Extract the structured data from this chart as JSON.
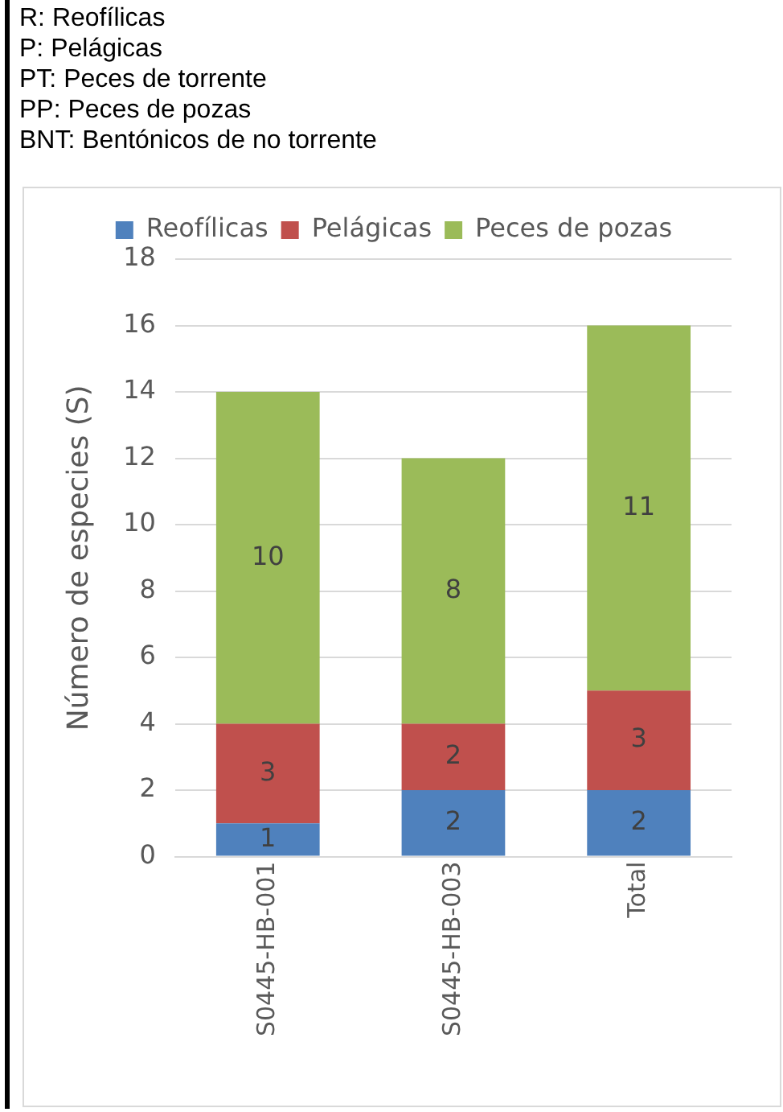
{
  "chart_data": {
    "type": "bar",
    "stacked": true,
    "ylabel": "Número de especies (S)",
    "annotations": [
      "R: Reofílicas",
      "P: Pelágicas",
      "PT: Peces de torrente",
      "PP: Peces de pozas",
      "BNT: Bentónicos de no torrente"
    ],
    "categories": [
      "S0445-HB-001",
      "S0445-HB-003",
      "Total"
    ],
    "series": [
      {
        "name": "Reofílicas",
        "color": "#4f81bd",
        "values": [
          1,
          2,
          2
        ]
      },
      {
        "name": "Pelágicas",
        "color": "#c0504d",
        "values": [
          3,
          2,
          3
        ]
      },
      {
        "name": "Peces de pozas",
        "color": "#9bbb59",
        "values": [
          10,
          8,
          11
        ]
      }
    ],
    "ylim": [
      0,
      18
    ],
    "yticks": [
      0,
      2,
      4,
      6,
      8,
      10,
      12,
      14,
      16,
      18
    ],
    "grid": "y",
    "legend": "top",
    "data_labels": true
  }
}
